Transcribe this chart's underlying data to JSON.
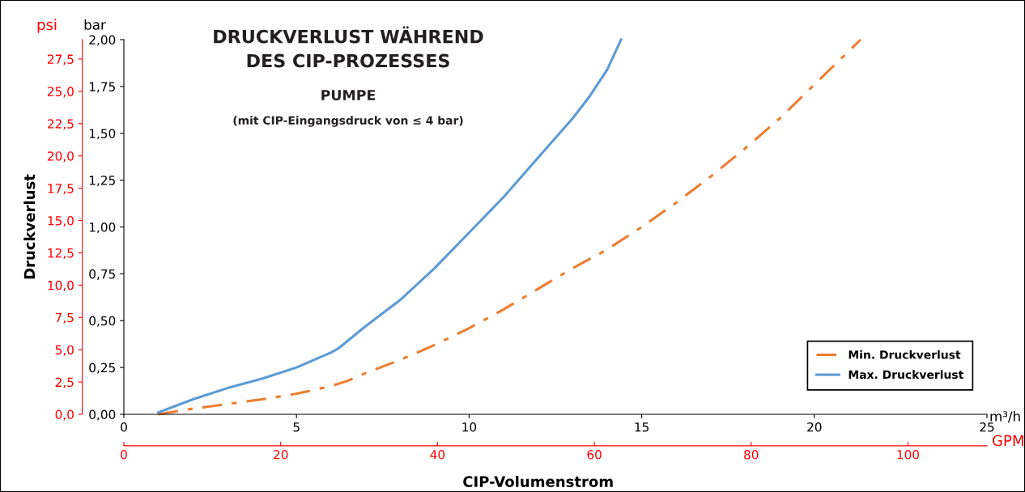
{
  "chart_data": {
    "type": "line",
    "title": "DRUCKVERLUST WÄHREND\nDES CIP-PROZESSES",
    "subtitle": "PUMPE",
    "annotations": [
      "(mit CIP-Eingangsdruck von ≤ 4 bar)",
      "psi",
      "bar",
      "m³/h"
    ],
    "xlabel": "CIP-Volumenstrom",
    "ylabel": "Druckverlust",
    "x2label": "GPM",
    "xlim": [
      0,
      25
    ],
    "xticks": [
      0,
      5,
      10,
      15,
      20,
      25
    ],
    "ylim": [
      0,
      29.0
    ],
    "yticks": [
      {
        "value": 0,
        "label": "0,0"
      },
      {
        "value": 2.5,
        "label": "2,5"
      },
      {
        "value": 5,
        "label": "5,0"
      },
      {
        "value": 7.5,
        "label": "7,5"
      },
      {
        "value": 10,
        "label": "10,0"
      },
      {
        "value": 12.5,
        "label": "12,5"
      },
      {
        "value": 15,
        "label": "15,0"
      },
      {
        "value": 17.5,
        "label": "17,5"
      },
      {
        "value": 20,
        "label": "20,0"
      },
      {
        "value": 22.5,
        "label": "22,5"
      },
      {
        "value": 25,
        "label": "25,0"
      },
      {
        "value": 27.5,
        "label": "27,5"
      }
    ],
    "y2lim": [
      0,
      2.0
    ],
    "y2ticks": [
      {
        "value": 0,
        "label": "0,00"
      },
      {
        "value": 0.25,
        "label": "0,25"
      },
      {
        "value": 0.5,
        "label": "0,50"
      },
      {
        "value": 0.75,
        "label": "0,75"
      },
      {
        "value": 1.0,
        "label": "1,00"
      },
      {
        "value": 1.25,
        "label": "1,25"
      },
      {
        "value": 1.5,
        "label": "1,50"
      },
      {
        "value": 1.75,
        "label": "1,75"
      },
      {
        "value": 2.0,
        "label": "2,00"
      }
    ],
    "x2lim": [
      0,
      110.07
    ],
    "x2ticks": [
      0,
      20,
      40,
      60,
      80,
      100
    ],
    "grid": false,
    "legend": "bottom right",
    "marker": "none",
    "series": [
      {
        "name": "Min. Druckverlust",
        "color": "#ed7d31",
        "line_style": "dashdot",
        "axis": "y2",
        "x": [
          1,
          2,
          3,
          4,
          5,
          6,
          6.5,
          7,
          8,
          9,
          10,
          11,
          12,
          13,
          14,
          15,
          16,
          17,
          18,
          19,
          20,
          21.34
        ],
        "values": [
          0,
          0.03,
          0.055,
          0.08,
          0.11,
          0.15,
          0.18,
          0.22,
          0.29,
          0.37,
          0.46,
          0.56,
          0.67,
          0.78,
          0.88,
          1.0,
          1.13,
          1.27,
          1.42,
          1.58,
          1.76,
          2.0
        ]
      },
      {
        "name": "Max. Druckverlust",
        "color": "#5b9bd5",
        "line_style": "solid",
        "axis": "y2",
        "x": [
          1,
          2,
          3,
          4,
          5,
          6,
          6.2,
          7,
          8,
          9,
          10,
          11,
          12,
          13,
          13.5,
          14,
          14.4
        ],
        "values": [
          0.01,
          0.08,
          0.14,
          0.19,
          0.25,
          0.33,
          0.35,
          0.47,
          0.61,
          0.78,
          0.97,
          1.16,
          1.37,
          1.58,
          1.7,
          1.84,
          2.0
        ]
      }
    ]
  }
}
